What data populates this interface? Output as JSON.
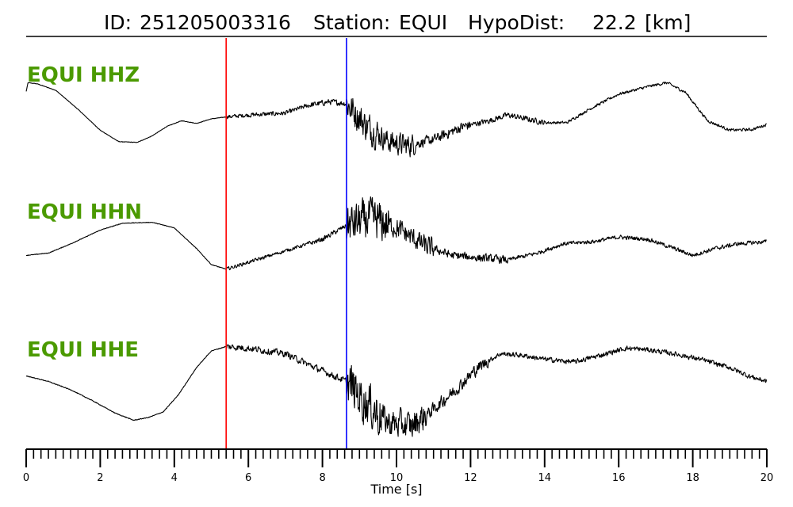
{
  "chart_data": {
    "type": "line",
    "title": {
      "id_label": "ID:",
      "id_value": "251205003316",
      "station_label": "Station:",
      "station_value": "EQUI",
      "dist_label": "HypoDist:",
      "dist_value": "22.2",
      "dist_unit": "[km]"
    },
    "xlabel": "Time [s]",
    "xlim": [
      0,
      20
    ],
    "major_ticks": [
      0,
      2,
      4,
      6,
      8,
      10,
      12,
      14,
      16,
      18,
      20
    ],
    "minor_tick_step": 0.2,
    "grid": false,
    "picks": [
      {
        "phase": "P",
        "time": 5.4,
        "color": "#ff0000"
      },
      {
        "phase": "S",
        "time": 8.65,
        "color": "#0000ff"
      }
    ],
    "label_color": "#4b9a00",
    "series": [
      {
        "name": "EQUI HHZ",
        "points": [
          [
            0.0,
            0.72
          ],
          [
            0.05,
            0.95
          ],
          [
            0.3,
            0.92
          ],
          [
            0.8,
            0.75
          ],
          [
            1.4,
            0.25
          ],
          [
            2.0,
            -0.3
          ],
          [
            2.5,
            -0.6
          ],
          [
            3.0,
            -0.62
          ],
          [
            3.4,
            -0.45
          ],
          [
            3.8,
            -0.2
          ],
          [
            4.2,
            -0.05
          ],
          [
            4.6,
            -0.12
          ],
          [
            5.0,
            0.0
          ],
          [
            5.4,
            0.05
          ]
        ],
        "noise": [
          {
            "t0": 5.4,
            "t1": 6.0,
            "amp": 0.07
          },
          {
            "t0": 6.0,
            "t1": 7.6,
            "amp": 0.08
          },
          {
            "t0": 7.6,
            "t1": 8.65,
            "amp": 0.1
          },
          {
            "t0": 8.65,
            "t1": 9.5,
            "amp": 0.55
          },
          {
            "t0": 9.5,
            "t1": 10.5,
            "amp": 0.4
          },
          {
            "t0": 10.5,
            "t1": 12.0,
            "amp": 0.18
          },
          {
            "t0": 12.0,
            "t1": 14.0,
            "amp": 0.1
          },
          {
            "t0": 14.0,
            "t1": 20.0,
            "amp": 0.05
          }
        ],
        "trend": [
          [
            5.4,
            0.05
          ],
          [
            6.0,
            0.1
          ],
          [
            7.0,
            0.15
          ],
          [
            7.6,
            0.35
          ],
          [
            8.2,
            0.45
          ],
          [
            8.65,
            0.4
          ],
          [
            9.2,
            -0.2
          ],
          [
            9.8,
            -0.6
          ],
          [
            10.3,
            -0.7
          ],
          [
            11.0,
            -0.55
          ],
          [
            11.8,
            -0.2
          ],
          [
            12.5,
            -0.05
          ],
          [
            13.0,
            0.1
          ],
          [
            13.5,
            0.0
          ],
          [
            14.0,
            -0.1
          ],
          [
            14.6,
            -0.1
          ],
          [
            15.2,
            0.25
          ],
          [
            16.0,
            0.65
          ],
          [
            16.8,
            0.85
          ],
          [
            17.3,
            0.95
          ],
          [
            17.8,
            0.7
          ],
          [
            18.4,
            -0.05
          ],
          [
            19.0,
            -0.3
          ],
          [
            19.6,
            -0.28
          ],
          [
            20.0,
            -0.15
          ]
        ]
      },
      {
        "name": "EQUI HHN",
        "points": [
          [
            0.0,
            -0.3
          ],
          [
            0.6,
            -0.25
          ],
          [
            1.2,
            -0.05
          ],
          [
            2.0,
            0.25
          ],
          [
            2.6,
            0.4
          ],
          [
            3.4,
            0.42
          ],
          [
            4.0,
            0.3
          ],
          [
            4.6,
            -0.15
          ],
          [
            5.0,
            -0.5
          ],
          [
            5.4,
            -0.6
          ]
        ],
        "noise": [
          {
            "t0": 5.4,
            "t1": 7.6,
            "amp": 0.05
          },
          {
            "t0": 7.6,
            "t1": 8.65,
            "amp": 0.07
          },
          {
            "t0": 8.65,
            "t1": 9.8,
            "amp": 0.6
          },
          {
            "t0": 9.8,
            "t1": 11.0,
            "amp": 0.3
          },
          {
            "t0": 11.0,
            "t1": 13.0,
            "amp": 0.12
          },
          {
            "t0": 13.0,
            "t1": 20.0,
            "amp": 0.06
          }
        ],
        "trend": [
          [
            5.4,
            -0.6
          ],
          [
            6.0,
            -0.45
          ],
          [
            7.0,
            -0.2
          ],
          [
            8.0,
            0.05
          ],
          [
            8.65,
            0.35
          ],
          [
            9.3,
            0.5
          ],
          [
            10.0,
            0.3
          ],
          [
            10.8,
            -0.1
          ],
          [
            11.5,
            -0.3
          ],
          [
            12.2,
            -0.35
          ],
          [
            13.0,
            -0.4
          ],
          [
            13.8,
            -0.25
          ],
          [
            14.5,
            -0.05
          ],
          [
            15.3,
            0.0
          ],
          [
            16.0,
            0.1
          ],
          [
            16.8,
            0.05
          ],
          [
            17.5,
            -0.15
          ],
          [
            18.0,
            -0.3
          ],
          [
            18.6,
            -0.15
          ],
          [
            19.2,
            -0.05
          ],
          [
            20.0,
            0.0
          ]
        ]
      },
      {
        "name": "EQUI HHE",
        "points": [
          [
            0.0,
            0.05
          ],
          [
            0.6,
            -0.05
          ],
          [
            1.2,
            -0.2
          ],
          [
            1.8,
            -0.4
          ],
          [
            2.4,
            -0.62
          ],
          [
            2.9,
            -0.75
          ],
          [
            3.3,
            -0.7
          ],
          [
            3.7,
            -0.6
          ],
          [
            4.1,
            -0.3
          ],
          [
            4.6,
            0.2
          ],
          [
            5.0,
            0.5
          ],
          [
            5.4,
            0.58
          ]
        ],
        "noise": [
          {
            "t0": 5.4,
            "t1": 7.0,
            "amp": 0.08
          },
          {
            "t0": 7.0,
            "t1": 8.65,
            "amp": 0.08
          },
          {
            "t0": 8.65,
            "t1": 9.6,
            "amp": 0.55
          },
          {
            "t0": 9.6,
            "t1": 10.8,
            "amp": 0.35
          },
          {
            "t0": 10.8,
            "t1": 12.5,
            "amp": 0.15
          },
          {
            "t0": 12.5,
            "t1": 20.0,
            "amp": 0.06
          }
        ],
        "trend": [
          [
            5.4,
            0.58
          ],
          [
            6.0,
            0.55
          ],
          [
            7.0,
            0.45
          ],
          [
            7.8,
            0.2
          ],
          [
            8.65,
            -0.05
          ],
          [
            9.2,
            -0.45
          ],
          [
            9.8,
            -0.8
          ],
          [
            10.4,
            -0.85
          ],
          [
            11.0,
            -0.55
          ],
          [
            11.6,
            -0.2
          ],
          [
            12.2,
            0.2
          ],
          [
            12.8,
            0.45
          ],
          [
            13.4,
            0.42
          ],
          [
            14.0,
            0.35
          ],
          [
            14.8,
            0.3
          ],
          [
            15.5,
            0.42
          ],
          [
            16.2,
            0.55
          ],
          [
            16.8,
            0.52
          ],
          [
            17.5,
            0.45
          ],
          [
            18.2,
            0.35
          ],
          [
            19.0,
            0.2
          ],
          [
            19.5,
            0.05
          ],
          [
            20.0,
            -0.05
          ]
        ]
      }
    ]
  }
}
